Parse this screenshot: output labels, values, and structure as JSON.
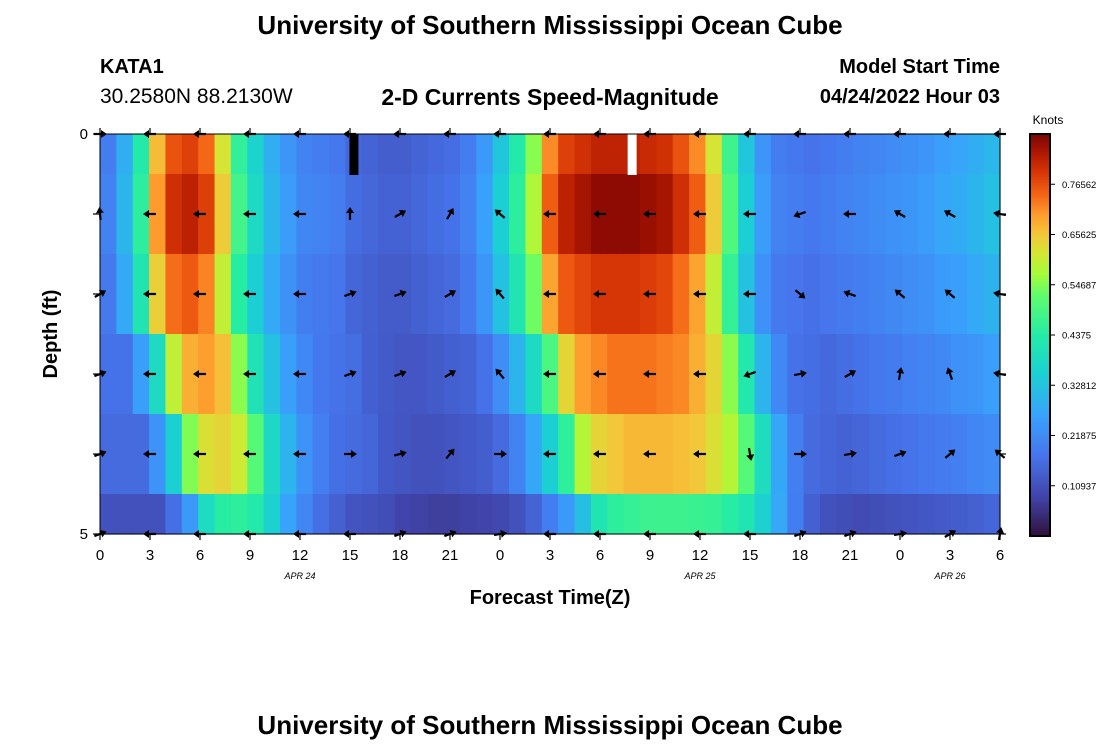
{
  "header": {
    "title": "University of Southern Mississippi Ocean Cube",
    "station": "KATA1",
    "coords": "30.2580N  88.2130W",
    "subtitle": "2-D Currents Speed-Magnitude",
    "start_label": "Model Start Time",
    "start_time": "04/24/2022 Hour 03"
  },
  "footer": {
    "title": "University of Southern Mississippi Ocean Cube"
  },
  "colors": {
    "missing": "#000000",
    "arrow": "#000000"
  },
  "chart_data": {
    "type": "heatmap",
    "title": "2-D Currents Speed-Magnitude",
    "xlabel": "Forecast Time(Z)",
    "ylabel": "Depth (ft)",
    "x_tick_labels": [
      "0",
      "3",
      "6",
      "9",
      "12",
      "15",
      "18",
      "21",
      "0",
      "3",
      "6",
      "9",
      "12",
      "15",
      "18",
      "21",
      "0",
      "3",
      "6"
    ],
    "date_labels": [
      {
        "label": "APR 24",
        "tick_index": 4
      },
      {
        "label": "APR 25",
        "tick_index": 12
      },
      {
        "label": "APR 26",
        "tick_index": 17
      }
    ],
    "y_tick_labels": [
      "0",
      "",
      "",
      "",
      "",
      "5"
    ],
    "ylim": [
      0,
      5
    ],
    "colorbar": {
      "label": "Knots",
      "min": 0.0,
      "max": 0.875,
      "tick_values": [
        0.10937,
        0.21875,
        0.32812,
        0.4375,
        0.54687,
        0.65625,
        0.76562
      ],
      "tick_labels": [
        "0.10937",
        "0.21875",
        "0.32812",
        "0.4375",
        "0.54687",
        "0.65625",
        "0.76562"
      ]
    },
    "hours": 55,
    "depth_rows": 6,
    "speed_profiles": [
      [
        0,
        0.2
      ],
      [
        1,
        0.3
      ],
      [
        2,
        0.45
      ],
      [
        3,
        0.7
      ],
      [
        4,
        0.8
      ],
      [
        5,
        0.82
      ],
      [
        6,
        0.78
      ],
      [
        7,
        0.65
      ],
      [
        8,
        0.48
      ],
      [
        9,
        0.38
      ],
      [
        10,
        0.3
      ],
      [
        11,
        0.25
      ],
      [
        12,
        0.21
      ],
      [
        13,
        0.2
      ],
      [
        14,
        0.19
      ],
      [
        15,
        0.16
      ],
      [
        16,
        0.15
      ],
      [
        17,
        0.14
      ],
      [
        18,
        0.14
      ],
      [
        19,
        0.15
      ],
      [
        20,
        0.16
      ],
      [
        21,
        0.17
      ],
      [
        22,
        0.2
      ],
      [
        23,
        0.26
      ],
      [
        24,
        0.35
      ],
      [
        25,
        0.45
      ],
      [
        26,
        0.58
      ],
      [
        27,
        0.75
      ],
      [
        28,
        0.82
      ],
      [
        29,
        0.84
      ],
      [
        30,
        0.86
      ],
      [
        31,
        0.86
      ],
      [
        32,
        0.86
      ],
      [
        33,
        0.85
      ],
      [
        34,
        0.84
      ],
      [
        35,
        0.8
      ],
      [
        36,
        0.75
      ],
      [
        37,
        0.65
      ],
      [
        38,
        0.5
      ],
      [
        39,
        0.35
      ],
      [
        40,
        0.25
      ],
      [
        41,
        0.2
      ],
      [
        42,
        0.19
      ],
      [
        43,
        0.18
      ],
      [
        44,
        0.19
      ],
      [
        45,
        0.2
      ],
      [
        46,
        0.21
      ],
      [
        47,
        0.22
      ],
      [
        48,
        0.23
      ],
      [
        49,
        0.24
      ],
      [
        50,
        0.25
      ],
      [
        51,
        0.27
      ],
      [
        52,
        0.28
      ],
      [
        53,
        0.3
      ],
      [
        54,
        0.32
      ]
    ],
    "row_scale": [
      0.95,
      1.0,
      0.92,
      0.85,
      0.78,
      0.55
    ],
    "row_shift": [
      0,
      0,
      0,
      1,
      2,
      3
    ],
    "missing_cells": [
      [
        0,
        15
      ],
      [
        0,
        32
      ]
    ],
    "arrow_hours": [
      0,
      3,
      6,
      9,
      12,
      15,
      18,
      21,
      24,
      27,
      30,
      33,
      36,
      39,
      42,
      45,
      48,
      51,
      54
    ],
    "arrow_rows": [
      1,
      2,
      3,
      4
    ],
    "arrow_directions_deg": [
      [
        95,
        180,
        180,
        180,
        180,
        90,
        30,
        60,
        140,
        180,
        180,
        180,
        180,
        180,
        200,
        180,
        150,
        150,
        170
      ],
      [
        30,
        180,
        180,
        180,
        180,
        20,
        20,
        30,
        130,
        180,
        180,
        180,
        180,
        180,
        320,
        160,
        140,
        140,
        170
      ],
      [
        20,
        180,
        180,
        180,
        180,
        20,
        20,
        30,
        130,
        180,
        180,
        180,
        180,
        200,
        10,
        30,
        80,
        110,
        170
      ],
      [
        20,
        180,
        180,
        180,
        180,
        0,
        15,
        50,
        0,
        180,
        180,
        180,
        180,
        280,
        0,
        10,
        20,
        40,
        140
      ]
    ]
  },
  "axis_labels": {
    "x": "Forecast Time(Z)",
    "y": "Depth (ft)"
  }
}
